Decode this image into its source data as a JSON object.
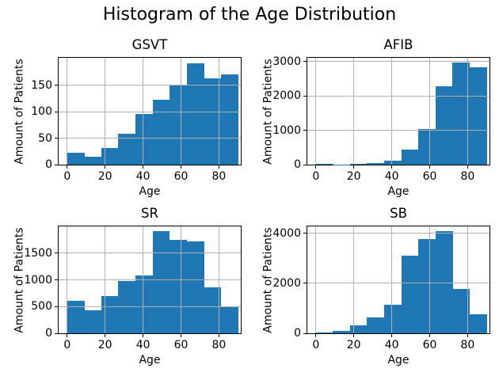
{
  "figure": {
    "title": "Histogram of the Age Distribution"
  },
  "colors": {
    "bar_fill": "#1f77b4",
    "gridline": "#b0b0b0",
    "spine": "#000000",
    "text": "#000000",
    "background": "#ffffff"
  },
  "chart_data": [
    {
      "type": "bar",
      "subtype": "histogram",
      "title": "GSVT",
      "xlabel": "Age",
      "ylabel": "Amount of Patients",
      "bin_edges": [
        0,
        9,
        18,
        27,
        36,
        45,
        54,
        63,
        72,
        81,
        90
      ],
      "values": [
        22,
        15,
        31,
        58,
        96,
        122,
        150,
        192,
        163,
        171
      ],
      "xticks": [
        0,
        20,
        40,
        60,
        80
      ],
      "yticks": [
        0,
        50,
        100,
        150
      ],
      "xlim": [
        -4.5,
        91.5
      ],
      "ylim": [
        0,
        202
      ],
      "grid": true,
      "legend": false
    },
    {
      "type": "bar",
      "subtype": "histogram",
      "title": "AFIB",
      "xlabel": "Age",
      "ylabel": "Amount of Patients",
      "bin_edges": [
        0,
        9,
        18,
        27,
        36,
        45,
        54,
        63,
        72,
        81,
        90
      ],
      "values": [
        25,
        8,
        22,
        45,
        125,
        440,
        1035,
        2285,
        2960,
        2825
      ],
      "xticks": [
        0,
        20,
        40,
        60,
        80
      ],
      "yticks": [
        0,
        1000,
        2000,
        3000
      ],
      "xlim": [
        -4.5,
        91.5
      ],
      "ylim": [
        0,
        3108
      ],
      "grid": true,
      "legend": false
    },
    {
      "type": "bar",
      "subtype": "histogram",
      "title": "SR",
      "xlabel": "Age",
      "ylabel": "Amount of Patients",
      "bin_edges": [
        0,
        9,
        18,
        27,
        36,
        45,
        54,
        63,
        72,
        81,
        90
      ],
      "values": [
        605,
        435,
        700,
        975,
        1075,
        1905,
        1755,
        1715,
        865,
        510
      ],
      "xticks": [
        0,
        20,
        40,
        60,
        80
      ],
      "yticks": [
        0,
        500,
        1000,
        1500
      ],
      "xlim": [
        -4.5,
        91.5
      ],
      "ylim": [
        0,
        2000
      ],
      "grid": true,
      "legend": false
    },
    {
      "type": "bar",
      "subtype": "histogram",
      "title": "SB",
      "xlabel": "Age",
      "ylabel": "Amount of Patients",
      "bin_edges": [
        0,
        9,
        18,
        27,
        36,
        45,
        54,
        63,
        72,
        81,
        90
      ],
      "values": [
        40,
        80,
        315,
        635,
        1140,
        3120,
        3790,
        4080,
        1790,
        750
      ],
      "xticks": [
        0,
        20,
        40,
        60,
        80
      ],
      "yticks": [
        0,
        2000,
        4000
      ],
      "xlim": [
        -4.5,
        91.5
      ],
      "ylim": [
        0,
        4284
      ],
      "grid": true,
      "legend": false
    }
  ]
}
